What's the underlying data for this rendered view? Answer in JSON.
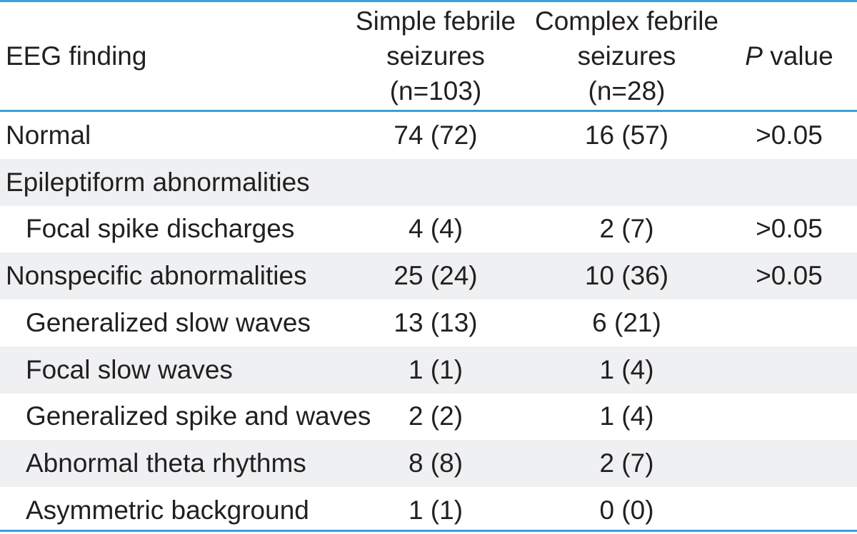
{
  "table": {
    "header": {
      "col0": "EEG finding",
      "col1": [
        "Simple febrile",
        "seizures",
        "(n=103)"
      ],
      "col2": [
        "Complex febrile",
        "seizures",
        "(n=28)"
      ],
      "col3_italic": "P",
      "col3_rest": " value"
    },
    "rows": [
      {
        "label": "Normal",
        "simple": "74 (72)",
        "complex": "16 (57)",
        "p": ">0.05",
        "indent": false
      },
      {
        "label": "Epileptiform abnormalities",
        "simple": "",
        "complex": "",
        "p": "",
        "indent": false
      },
      {
        "label": "Focal spike discharges",
        "simple": "4 (4)",
        "complex": "2 (7)",
        "p": ">0.05",
        "indent": true
      },
      {
        "label": "Nonspecific abnormalities",
        "simple": "25 (24)",
        "complex": "10 (36)",
        "p": ">0.05",
        "indent": false
      },
      {
        "label": "Generalized slow waves",
        "simple": "13 (13)",
        "complex": "6 (21)",
        "p": "",
        "indent": true
      },
      {
        "label": "Focal slow waves",
        "simple": "1 (1)",
        "complex": "1 (4)",
        "p": "",
        "indent": true
      },
      {
        "label": "Generalized spike and waves",
        "simple": "2 (2)",
        "complex": "1 (4)",
        "p": "",
        "indent": true
      },
      {
        "label": "Abnormal theta rhythms",
        "simple": "8 (8)",
        "complex": "2 (7)",
        "p": "",
        "indent": true
      },
      {
        "label": "Asymmetric background",
        "simple": "1 (1)",
        "complex": "0 (0)",
        "p": "",
        "indent": true
      }
    ]
  },
  "colors": {
    "rule": "#3aa0d8",
    "shade": "#eef0f1",
    "text": "#231f20"
  }
}
